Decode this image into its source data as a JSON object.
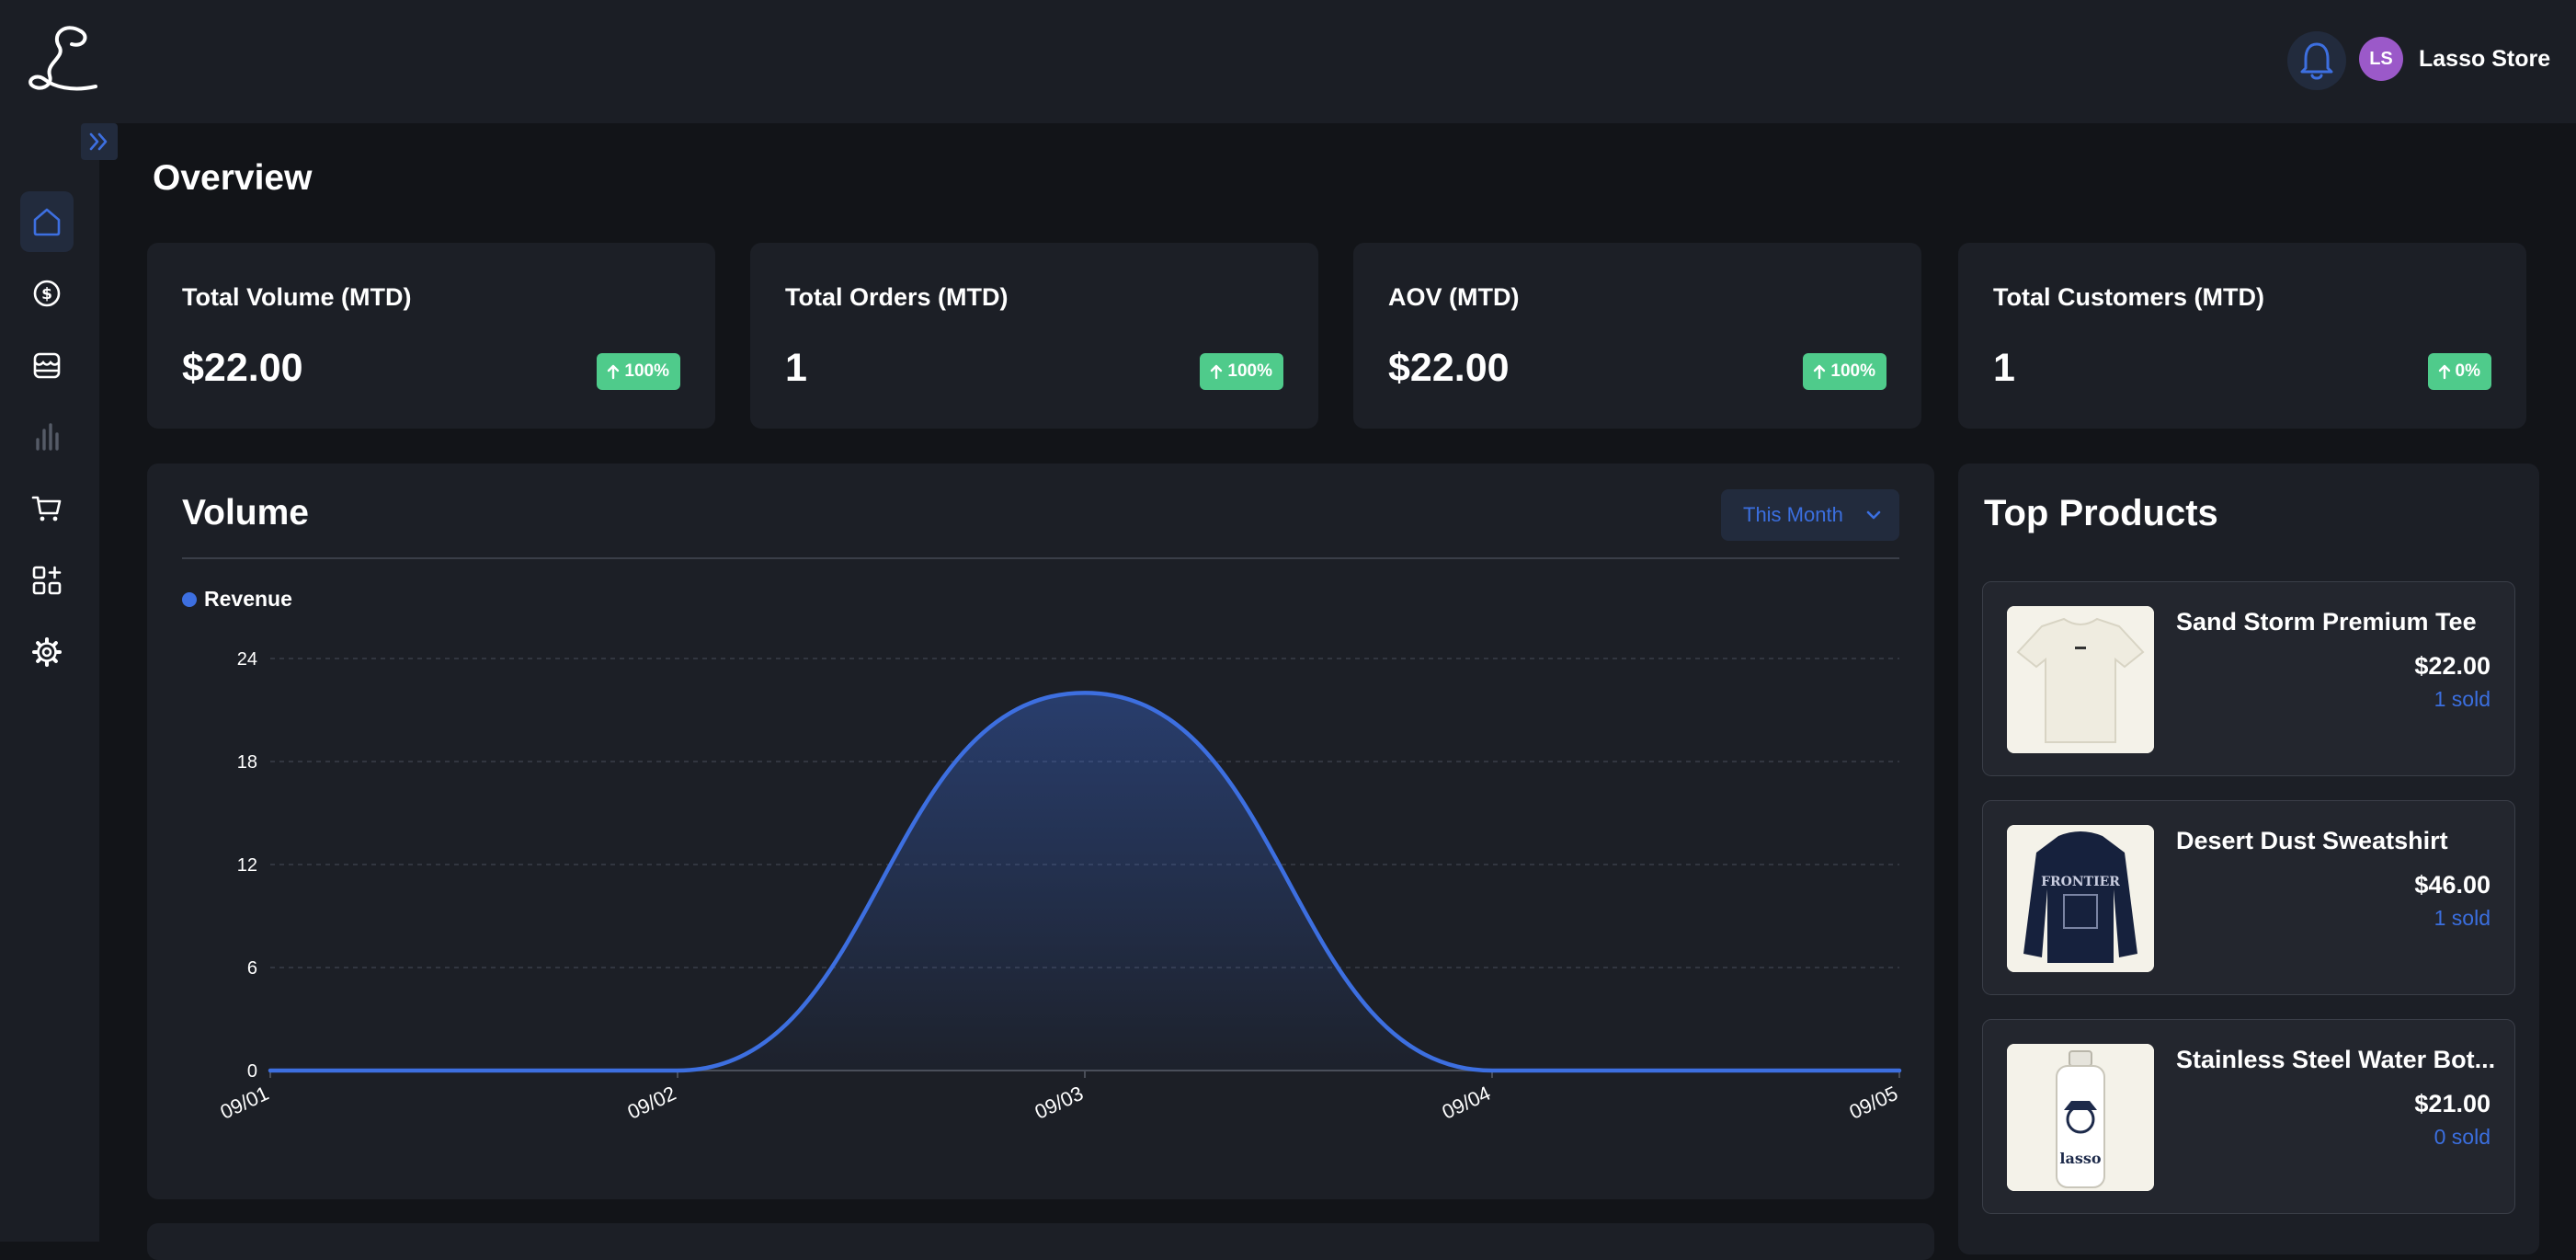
{
  "header": {
    "logo_icon": "script-l-logo",
    "store_initials": "LS",
    "store_name": "Lasso Store",
    "notification_icon": "bell-icon"
  },
  "sidebar": {
    "collapse_icon": "chevrons-right-icon",
    "items": [
      {
        "icon": "home-icon",
        "active": true
      },
      {
        "icon": "dollar-icon",
        "active": false
      },
      {
        "icon": "storefront-icon",
        "active": false
      },
      {
        "icon": "bar-chart-icon",
        "active": false
      },
      {
        "icon": "cart-icon",
        "active": false
      },
      {
        "icon": "apps-plus-icon",
        "active": false
      },
      {
        "icon": "gear-icon",
        "active": false
      }
    ]
  },
  "page": {
    "title": "Overview"
  },
  "stats": [
    {
      "label": "Total Volume (MTD)",
      "value": "$22.00",
      "change": "100%"
    },
    {
      "label": "Total Orders (MTD)",
      "value": "1",
      "change": "100%"
    },
    {
      "label": "AOV (MTD)",
      "value": "$22.00",
      "change": "100%"
    },
    {
      "label": "Total Customers (MTD)",
      "value": "1",
      "change": "0%"
    }
  ],
  "volume": {
    "title": "Volume",
    "range_selected": "This Month"
  },
  "chart_data": {
    "type": "area",
    "x": [
      "09/01",
      "09/02",
      "09/03",
      "09/04",
      "09/05"
    ],
    "series": [
      {
        "name": "Revenue",
        "values": [
          0,
          0,
          22,
          0,
          0
        ],
        "color": "#3d6fe0"
      }
    ],
    "yticks": [
      0,
      6,
      12,
      18,
      24
    ],
    "ylim": [
      0,
      24
    ],
    "grid": true,
    "legend": "top-left"
  },
  "top_products": {
    "title": "Top Products",
    "items": [
      {
        "name": "Sand Storm Premium Tee",
        "price": "$22.00",
        "sold": "1 sold"
      },
      {
        "name": "Desert Dust Sweatshirt",
        "price": "$46.00",
        "sold": "1 sold",
        "thumb_text": "FRONTIER"
      },
      {
        "name": "Stainless Steel Water Bot...",
        "price": "$21.00",
        "sold": "0 sold",
        "thumb_text": "lasso"
      }
    ]
  },
  "colors": {
    "accent": "#3d6fe0",
    "badge_green": "#4fcb8b",
    "avatar": "#9b59c9"
  }
}
